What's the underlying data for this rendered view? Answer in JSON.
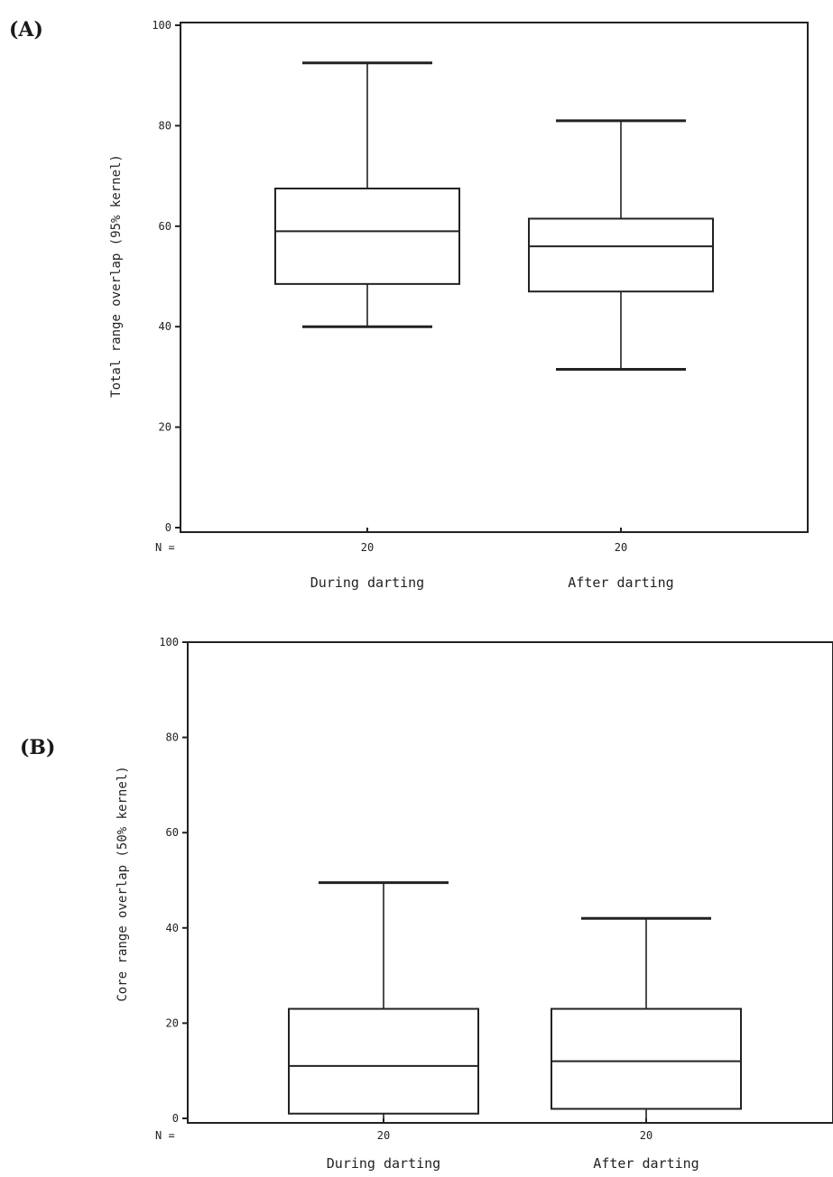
{
  "chart_data": [
    {
      "panel_label": "(A)",
      "type": "box",
      "ylabel": "Total range overlap (95% kernel)",
      "ylim": [
        0,
        100
      ],
      "yticks": [
        0,
        20,
        40,
        60,
        80,
        100
      ],
      "n_label": "N =",
      "categories": [
        "During darting",
        "After darting"
      ],
      "n": [
        20,
        20
      ],
      "boxes": [
        {
          "min": 40,
          "q1": 48.5,
          "median": 59,
          "q3": 67.5,
          "max": 92.5
        },
        {
          "min": 31.5,
          "q1": 47,
          "median": 56,
          "q3": 61.5,
          "max": 81
        }
      ]
    },
    {
      "panel_label": "(B)",
      "type": "box",
      "ylabel": "Core range overlap (50% kernel)",
      "ylim": [
        0,
        100
      ],
      "yticks": [
        0,
        20,
        40,
        60,
        80,
        100
      ],
      "n_label": "N =",
      "categories": [
        "During darting",
        "After darting"
      ],
      "n": [
        20,
        20
      ],
      "boxes": [
        {
          "min": 0,
          "q1": 1,
          "median": 11,
          "q3": 23,
          "max": 49.5
        },
        {
          "min": 0,
          "q1": 2,
          "median": 12,
          "q3": 23,
          "max": 42
        }
      ]
    }
  ]
}
